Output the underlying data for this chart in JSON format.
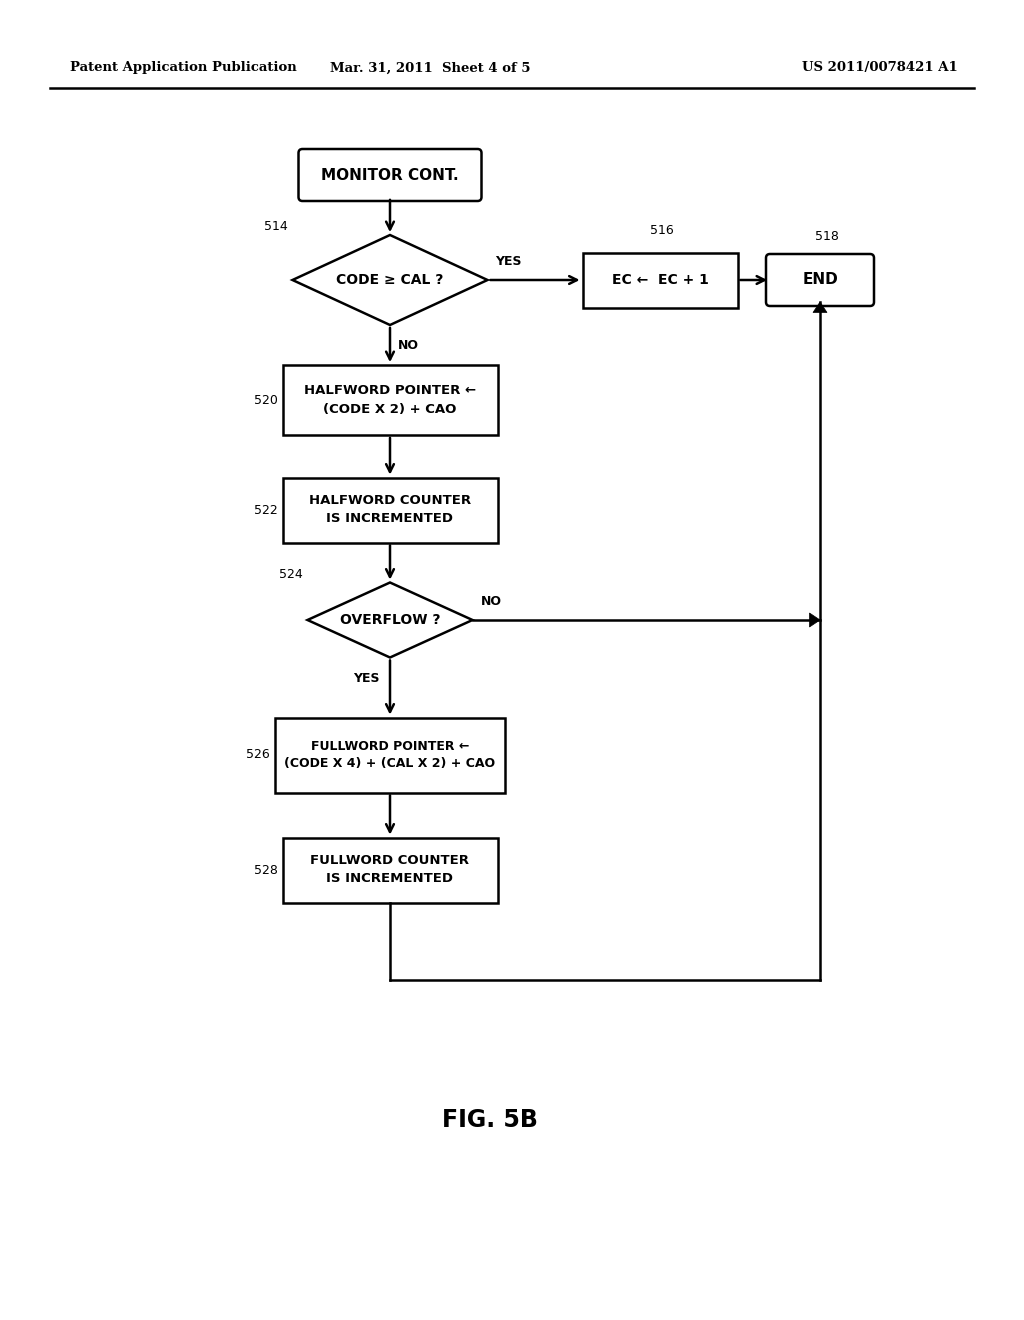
{
  "header_left": "Patent Application Publication",
  "header_center": "Mar. 31, 2011  Sheet 4 of 5",
  "header_right": "US 2011/0078421 A1",
  "figure_label": "FIG. 5B",
  "background_color": "#ffffff",
  "line_color": "#000000"
}
